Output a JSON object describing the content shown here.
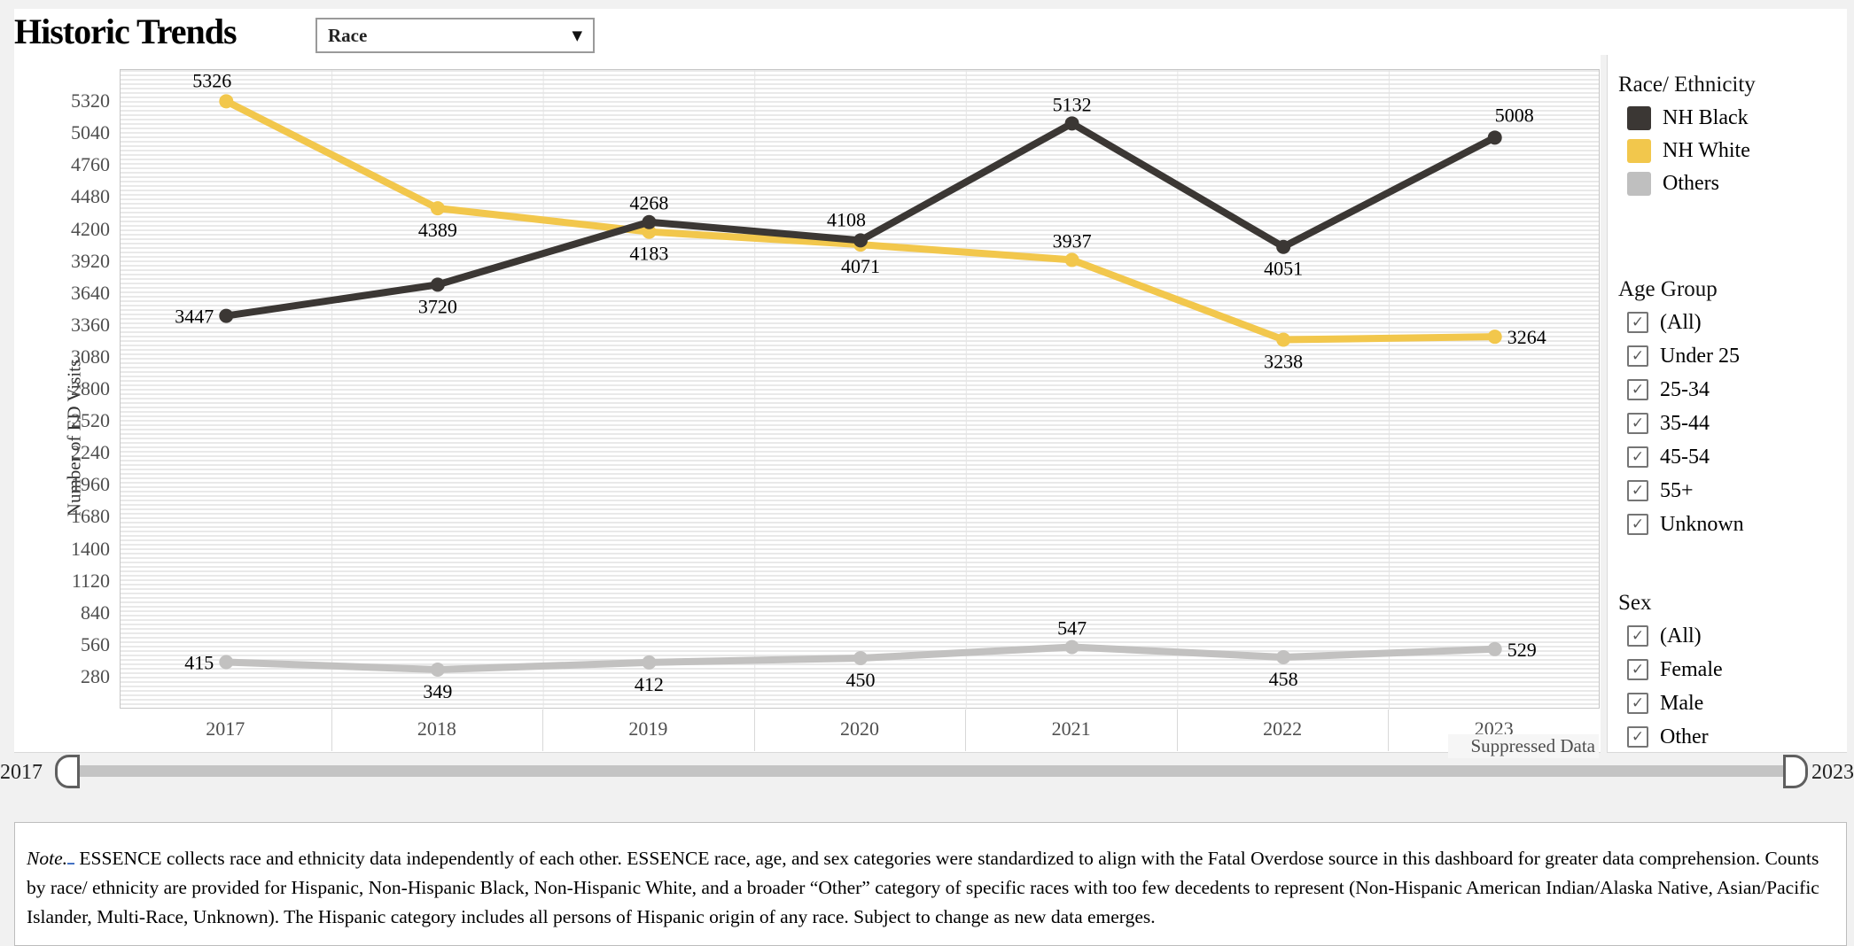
{
  "header": {
    "title": "Historic Trends",
    "dropdown": {
      "value": "Race"
    }
  },
  "chart_data": {
    "type": "line",
    "x": [
      2017,
      2018,
      2019,
      2020,
      2021,
      2022,
      2023
    ],
    "xlabel": "",
    "ylabel": "Number of ED Visits",
    "ylim": [
      0,
      5600
    ],
    "yticks": [
      280,
      560,
      840,
      1120,
      1400,
      1680,
      1960,
      2240,
      2520,
      2800,
      3080,
      3360,
      3640,
      3920,
      4200,
      4480,
      4760,
      5040,
      5320
    ],
    "grid": "horizontal-bands",
    "legend_position": "right",
    "series": [
      {
        "name": "NH Black",
        "color": "#3b3734",
        "values": [
          3447,
          3720,
          4268,
          4108,
          5132,
          4051,
          5008
        ],
        "label_pos": [
          "left",
          "below",
          "above",
          "above-left",
          "above",
          "below",
          "above-right"
        ]
      },
      {
        "name": "NH White",
        "color": "#f2c74c",
        "values": [
          5326,
          4389,
          4183,
          4071,
          3937,
          3238,
          3264
        ],
        "label_pos": [
          "above-left",
          "below",
          "below",
          "below",
          "above",
          "below",
          "right"
        ]
      },
      {
        "name": "Others",
        "color": "#c2c1c0",
        "values": [
          415,
          349,
          412,
          450,
          547,
          458,
          529
        ],
        "label_pos": [
          "left",
          "below",
          "below",
          "below",
          "above",
          "below",
          "right"
        ]
      }
    ],
    "annotations": [
      "Suppressed Data"
    ]
  },
  "legend": {
    "title": "Race/ Ethnicity",
    "items": [
      {
        "label": "NH Black",
        "color": "#3b3734"
      },
      {
        "label": "NH White",
        "color": "#f2c74c"
      },
      {
        "label": "Others",
        "color": "#bfbfbf"
      }
    ]
  },
  "filters": [
    {
      "title": "Age Group",
      "options": [
        {
          "label": "(All)",
          "checked": true
        },
        {
          "label": "Under 25",
          "checked": true
        },
        {
          "label": "25-34",
          "checked": true
        },
        {
          "label": "35-44",
          "checked": true
        },
        {
          "label": "45-54",
          "checked": true
        },
        {
          "label": "55+",
          "checked": true
        },
        {
          "label": "Unknown",
          "checked": true
        }
      ]
    },
    {
      "title": "Sex",
      "options": [
        {
          "label": "(All)",
          "checked": true
        },
        {
          "label": "Female",
          "checked": true
        },
        {
          "label": "Male",
          "checked": true
        },
        {
          "label": "Other",
          "checked": true
        }
      ]
    }
  ],
  "suppressed_label": "Suppressed Data",
  "slider": {
    "min_label": "2017",
    "max_label": "2023"
  },
  "note": {
    "prefix": "Note.",
    "body": " ESSENCE collects race and ethnicity data independently of each other. ESSENCE race, age, and sex categories were standardized to align with the Fatal Overdose source in this dashboard for greater data comprehension. Counts by race/ ethnicity are provided for Hispanic, Non-Hispanic Black, Non-Hispanic White, and a broader “Other” category of specific races with too few decedents to represent (Non-Hispanic American Indian/Alaska Native, Asian/Pacific Islander, Multi-Race, Unknown). The Hispanic category includes all persons of Hispanic origin of any race. Subject to change as new data emerges."
  }
}
